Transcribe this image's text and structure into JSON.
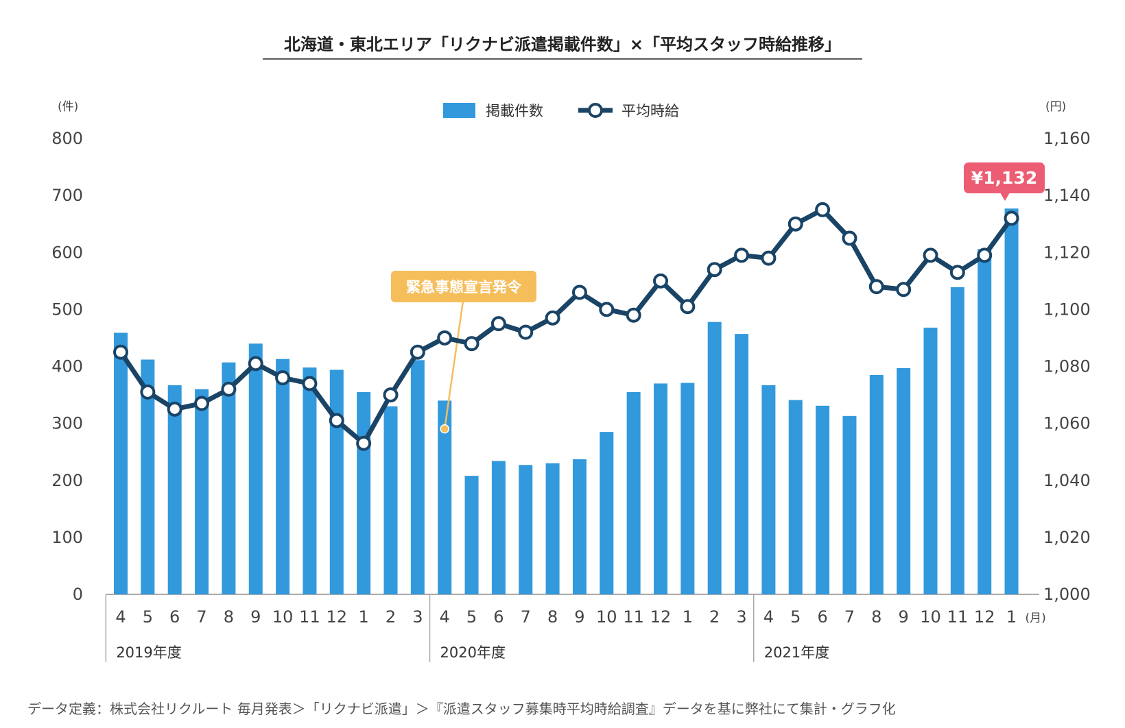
{
  "title": "北海道・東北エリア「リクナビ派遣掲載件数」×「平均スタッフ時給推移」",
  "left_unit": "(件)",
  "right_unit": "(円)",
  "month_unit": "(月)",
  "legend": {
    "bars": "掲載件数",
    "line": "平均時給"
  },
  "years": [
    "2019年度",
    "2020年度",
    "2021年度"
  ],
  "event_label": "緊急事態宣言発令",
  "price_label": "¥1,132",
  "footnote": "データ定義：株式会社リクルート 毎月発表＞「リクナビ派遣」＞『派遣スタッフ募集時平均時給調査』データを基に弊社にて集計・グラフ化",
  "colors": {
    "bar": "#3399dd",
    "line": "#1a4466",
    "event_callout": "#f5be5b",
    "price_callout": "#ec5d73",
    "axis": "#aaaaaa"
  },
  "chart_data": {
    "type": "bar",
    "categories": [
      "4",
      "5",
      "6",
      "7",
      "8",
      "9",
      "10",
      "11",
      "12",
      "1",
      "2",
      "3",
      "4",
      "5",
      "6",
      "7",
      "8",
      "9",
      "10",
      "11",
      "12",
      "1",
      "2",
      "3",
      "4",
      "5",
      "6",
      "7",
      "8",
      "9",
      "10",
      "11",
      "12",
      "1"
    ],
    "left_ticks": [
      "800",
      "700",
      "600",
      "500",
      "400",
      "300",
      "200",
      "100",
      "0"
    ],
    "right_ticks": [
      "1,160",
      "1,140",
      "1,120",
      "1,100",
      "1,080",
      "1,060",
      "1,040",
      "1,020",
      "1,000"
    ],
    "ylim_left": [
      0,
      800
    ],
    "ylim_right": [
      1000,
      1160
    ],
    "grid": false,
    "legend_position": "top-center",
    "series": [
      {
        "name": "掲載件数",
        "type": "bar",
        "axis": "left",
        "values": [
          459,
          412,
          367,
          360,
          407,
          440,
          413,
          398,
          394,
          355,
          330,
          411,
          340,
          208,
          234,
          227,
          230,
          237,
          285,
          355,
          370,
          371,
          478,
          457,
          367,
          341,
          331,
          313,
          385,
          397,
          468,
          539,
          606,
          677
        ]
      },
      {
        "name": "平均時給",
        "type": "line",
        "axis": "right",
        "values": [
          1085,
          1071,
          1065,
          1067,
          1072,
          1081,
          1076,
          1074,
          1061,
          1053,
          1070,
          1085,
          1090,
          1088,
          1095,
          1092,
          1097,
          1106,
          1100,
          1098,
          1110,
          1101,
          1114,
          1119,
          1118,
          1130,
          1135,
          1125,
          1108,
          1107,
          1119,
          1113,
          1119,
          1132
        ]
      }
    ],
    "annotations": [
      {
        "text": "緊急事態宣言発令",
        "category_index": 12,
        "value": 300
      },
      {
        "text": "¥1,132",
        "category_index": 33,
        "value": 1132
      }
    ]
  }
}
